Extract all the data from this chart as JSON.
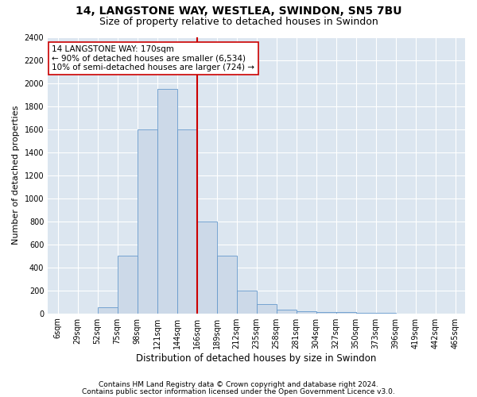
{
  "title1": "14, LANGSTONE WAY, WESTLEA, SWINDON, SN5 7BU",
  "title2": "Size of property relative to detached houses in Swindon",
  "xlabel": "Distribution of detached houses by size in Swindon",
  "ylabel": "Number of detached properties",
  "footer1": "Contains HM Land Registry data © Crown copyright and database right 2024.",
  "footer2": "Contains public sector information licensed under the Open Government Licence v3.0.",
  "annotation_line1": "14 LANGSTONE WAY: 170sqm",
  "annotation_line2": "← 90% of detached houses are smaller (6,534)",
  "annotation_line3": "10% of semi-detached houses are larger (724) →",
  "property_size_idx": 7,
  "bar_color": "#ccd9e8",
  "bar_edge_color": "#6699cc",
  "vline_color": "#cc0000",
  "background_color": "#dce6f0",
  "categories": [
    "6sqm",
    "29sqm",
    "52sqm",
    "75sqm",
    "98sqm",
    "121sqm",
    "144sqm",
    "166sqm",
    "189sqm",
    "212sqm",
    "235sqm",
    "258sqm",
    "281sqm",
    "304sqm",
    "327sqm",
    "350sqm",
    "373sqm",
    "396sqm",
    "419sqm",
    "442sqm",
    "465sqm"
  ],
  "n_bins": 21,
  "values": [
    0,
    0,
    50,
    500,
    1600,
    1950,
    1600,
    800,
    500,
    200,
    80,
    35,
    20,
    15,
    10,
    5,
    5,
    0,
    0,
    0,
    0
  ],
  "ylim": [
    0,
    2400
  ],
  "yticks": [
    0,
    200,
    400,
    600,
    800,
    1000,
    1200,
    1400,
    1600,
    1800,
    2000,
    2200,
    2400
  ],
  "grid_color": "#ffffff",
  "title1_fontsize": 10,
  "title2_fontsize": 9,
  "xlabel_fontsize": 8.5,
  "ylabel_fontsize": 8,
  "tick_fontsize": 7,
  "annotation_fontsize": 7.5,
  "footer_fontsize": 6.5
}
